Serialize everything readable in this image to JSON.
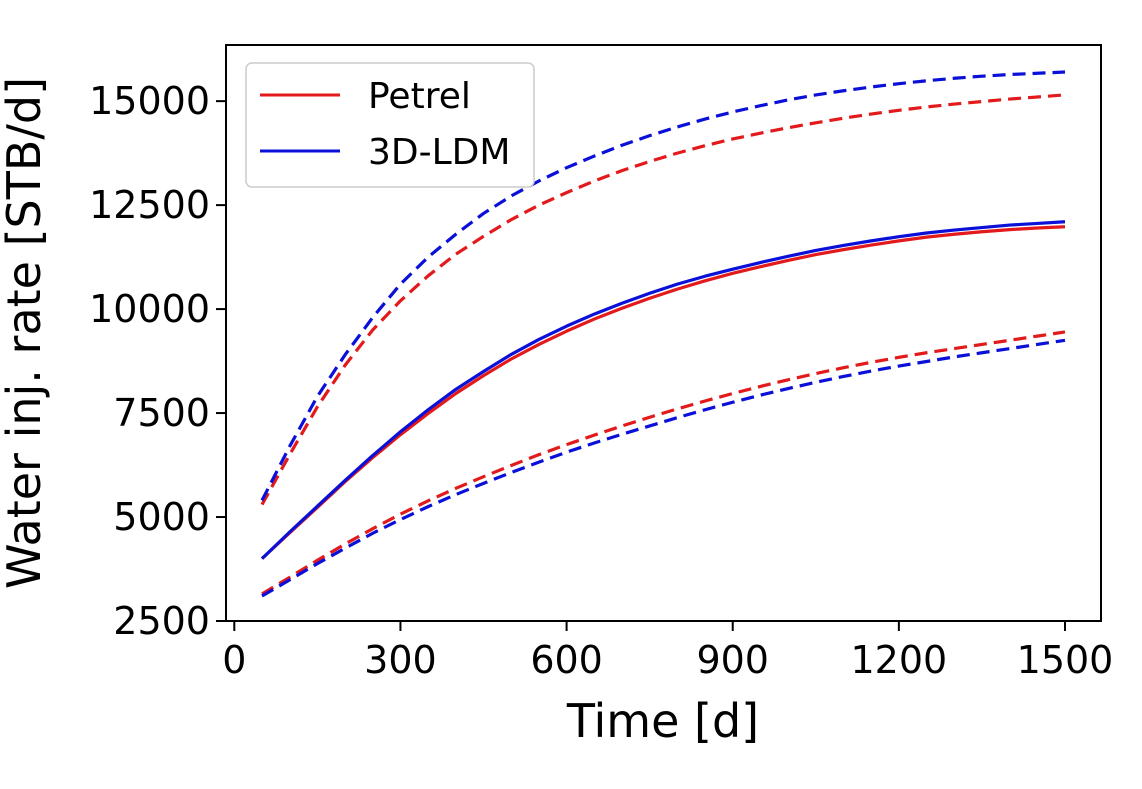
{
  "chart_data": {
    "type": "line",
    "title": "",
    "xlabel": "Time [d]",
    "ylabel": "Water inj. rate [STB/d]",
    "xlim": [
      -15,
      1565
    ],
    "ylim": [
      2500,
      16350
    ],
    "xticks": [
      0,
      300,
      600,
      900,
      1200,
      1500
    ],
    "yticks": [
      2500,
      5000,
      7500,
      10000,
      12500,
      15000
    ],
    "x": [
      50,
      100,
      150,
      200,
      250,
      300,
      350,
      400,
      450,
      500,
      550,
      600,
      650,
      700,
      750,
      800,
      850,
      900,
      950,
      1000,
      1050,
      1100,
      1150,
      1200,
      1250,
      1300,
      1350,
      1400,
      1450,
      1500
    ],
    "legend": {
      "location": "upper-left",
      "entries": [
        {
          "label": "Petrel",
          "color": "#e31a1c"
        },
        {
          "label": "3D-LDM",
          "color": "#0a10d8"
        }
      ]
    },
    "series": [
      {
        "name": "Petrel median",
        "model": "Petrel",
        "style": "solid",
        "color": "#e31a1c",
        "values": [
          4000,
          4620,
          5230,
          5850,
          6430,
          6980,
          7490,
          7970,
          8400,
          8800,
          9150,
          9470,
          9760,
          10020,
          10260,
          10480,
          10680,
          10860,
          11020,
          11170,
          11310,
          11430,
          11540,
          11640,
          11730,
          11800,
          11860,
          11910,
          11950,
          11980
        ]
      },
      {
        "name": "3D-LDM median",
        "model": "3D-LDM",
        "style": "solid",
        "color": "#0a10d8",
        "values": [
          4000,
          4640,
          5260,
          5880,
          6480,
          7050,
          7580,
          8070,
          8500,
          8910,
          9270,
          9590,
          9880,
          10140,
          10380,
          10600,
          10790,
          10960,
          11120,
          11270,
          11410,
          11530,
          11640,
          11740,
          11830,
          11900,
          11960,
          12020,
          12060,
          12100
        ]
      },
      {
        "name": "Petrel upper",
        "model": "Petrel",
        "style": "dashed",
        "color": "#e31a1c",
        "values": [
          5300,
          6500,
          7650,
          8650,
          9500,
          10200,
          10800,
          11320,
          11750,
          12150,
          12500,
          12800,
          13080,
          13330,
          13550,
          13750,
          13930,
          14090,
          14230,
          14360,
          14480,
          14590,
          14690,
          14780,
          14860,
          14930,
          14990,
          15050,
          15100,
          15150
        ]
      },
      {
        "name": "3D-LDM upper",
        "model": "3D-LDM",
        "style": "dashed",
        "color": "#0a10d8",
        "values": [
          5400,
          6700,
          7900,
          8900,
          9800,
          10600,
          11250,
          11800,
          12300,
          12720,
          13080,
          13400,
          13680,
          13940,
          14170,
          14380,
          14570,
          14740,
          14890,
          15030,
          15150,
          15250,
          15340,
          15420,
          15490,
          15550,
          15600,
          15640,
          15670,
          15700
        ]
      },
      {
        "name": "Petrel lower",
        "model": "Petrel",
        "style": "dashed",
        "color": "#e31a1c",
        "values": [
          3150,
          3550,
          3960,
          4350,
          4720,
          5070,
          5390,
          5690,
          5970,
          6240,
          6500,
          6740,
          6970,
          7190,
          7400,
          7600,
          7790,
          7970,
          8140,
          8300,
          8450,
          8590,
          8720,
          8840,
          8950,
          9050,
          9150,
          9250,
          9350,
          9450
        ]
      },
      {
        "name": "3D-LDM lower",
        "model": "3D-LDM",
        "style": "dashed",
        "color": "#0a10d8",
        "values": [
          3100,
          3490,
          3880,
          4250,
          4610,
          4940,
          5250,
          5540,
          5810,
          6070,
          6320,
          6560,
          6780,
          6990,
          7190,
          7390,
          7580,
          7760,
          7930,
          8090,
          8240,
          8380,
          8510,
          8630,
          8740,
          8850,
          8950,
          9050,
          9150,
          9250
        ]
      }
    ]
  }
}
